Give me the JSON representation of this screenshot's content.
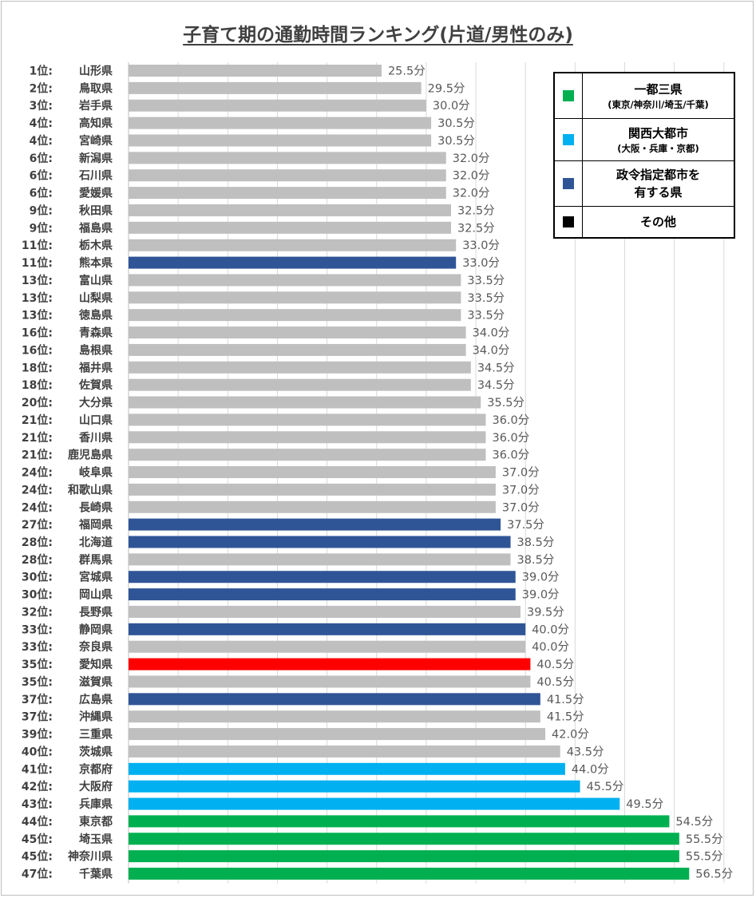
{
  "chart_data": {
    "type": "bar",
    "orientation": "horizontal",
    "title": "子育て期の通勤時間ランキング(片道/男性のみ)",
    "unit_suffix": "分",
    "xlim": [
      0,
      60
    ],
    "grid": true,
    "colors": {
      "一都三県": "#00b050",
      "関西大都市": "#00b0f0",
      "政令指定都市": "#2f5597",
      "その他": "#bfbfbf",
      "highlight": "#ff0000"
    },
    "legend": {
      "placement": "top-right",
      "items": [
        {
          "label": "一都三県",
          "sub": "(東京/神奈川/埼玉/千葉)",
          "color": "#00b050"
        },
        {
          "label": "関西大都市",
          "sub": "(大阪・兵庫・京都)",
          "color": "#00b0f0"
        },
        {
          "label": "政令指定都市を\n有する県",
          "sub": "",
          "color": "#2f5597"
        },
        {
          "label": "その他",
          "sub": "",
          "color": "#000000"
        }
      ]
    },
    "rows": [
      {
        "rank": "1位:",
        "pref": "山形県",
        "value": 25.5,
        "group": "その他"
      },
      {
        "rank": "2位:",
        "pref": "鳥取県",
        "value": 29.5,
        "group": "その他"
      },
      {
        "rank": "3位:",
        "pref": "岩手県",
        "value": 30.0,
        "group": "その他"
      },
      {
        "rank": "4位:",
        "pref": "高知県",
        "value": 30.5,
        "group": "その他"
      },
      {
        "rank": "4位:",
        "pref": "宮崎県",
        "value": 30.5,
        "group": "その他"
      },
      {
        "rank": "6位:",
        "pref": "新潟県",
        "value": 32.0,
        "group": "その他"
      },
      {
        "rank": "6位:",
        "pref": "石川県",
        "value": 32.0,
        "group": "その他"
      },
      {
        "rank": "6位:",
        "pref": "愛媛県",
        "value": 32.0,
        "group": "その他"
      },
      {
        "rank": "9位:",
        "pref": "秋田県",
        "value": 32.5,
        "group": "その他"
      },
      {
        "rank": "9位:",
        "pref": "福島県",
        "value": 32.5,
        "group": "その他"
      },
      {
        "rank": "11位:",
        "pref": "栃木県",
        "value": 33.0,
        "group": "その他"
      },
      {
        "rank": "11位:",
        "pref": "熊本県",
        "value": 33.0,
        "group": "政令指定都市"
      },
      {
        "rank": "13位:",
        "pref": "富山県",
        "value": 33.5,
        "group": "その他"
      },
      {
        "rank": "13位:",
        "pref": "山梨県",
        "value": 33.5,
        "group": "その他"
      },
      {
        "rank": "13位:",
        "pref": "徳島県",
        "value": 33.5,
        "group": "その他"
      },
      {
        "rank": "16位:",
        "pref": "青森県",
        "value": 34.0,
        "group": "その他"
      },
      {
        "rank": "16位:",
        "pref": "島根県",
        "value": 34.0,
        "group": "その他"
      },
      {
        "rank": "18位:",
        "pref": "福井県",
        "value": 34.5,
        "group": "その他"
      },
      {
        "rank": "18位:",
        "pref": "佐賀県",
        "value": 34.5,
        "group": "その他"
      },
      {
        "rank": "20位:",
        "pref": "大分県",
        "value": 35.5,
        "group": "その他"
      },
      {
        "rank": "21位:",
        "pref": "山口県",
        "value": 36.0,
        "group": "その他"
      },
      {
        "rank": "21位:",
        "pref": "香川県",
        "value": 36.0,
        "group": "その他"
      },
      {
        "rank": "21位:",
        "pref": "鹿児島県",
        "value": 36.0,
        "group": "その他"
      },
      {
        "rank": "24位:",
        "pref": "岐阜県",
        "value": 37.0,
        "group": "その他"
      },
      {
        "rank": "24位:",
        "pref": "和歌山県",
        "value": 37.0,
        "group": "その他"
      },
      {
        "rank": "24位:",
        "pref": "長崎県",
        "value": 37.0,
        "group": "その他"
      },
      {
        "rank": "27位:",
        "pref": "福岡県",
        "value": 37.5,
        "group": "政令指定都市"
      },
      {
        "rank": "28位:",
        "pref": "北海道",
        "value": 38.5,
        "group": "政令指定都市"
      },
      {
        "rank": "28位:",
        "pref": "群馬県",
        "value": 38.5,
        "group": "その他"
      },
      {
        "rank": "30位:",
        "pref": "宮城県",
        "value": 39.0,
        "group": "政令指定都市"
      },
      {
        "rank": "30位:",
        "pref": "岡山県",
        "value": 39.0,
        "group": "政令指定都市"
      },
      {
        "rank": "32位:",
        "pref": "長野県",
        "value": 39.5,
        "group": "その他"
      },
      {
        "rank": "33位:",
        "pref": "静岡県",
        "value": 40.0,
        "group": "政令指定都市"
      },
      {
        "rank": "33位:",
        "pref": "奈良県",
        "value": 40.0,
        "group": "その他"
      },
      {
        "rank": "35位:",
        "pref": "愛知県",
        "value": 40.5,
        "group": "highlight"
      },
      {
        "rank": "35位:",
        "pref": "滋賀県",
        "value": 40.5,
        "group": "その他"
      },
      {
        "rank": "37位:",
        "pref": "広島県",
        "value": 41.5,
        "group": "政令指定都市"
      },
      {
        "rank": "37位:",
        "pref": "沖縄県",
        "value": 41.5,
        "group": "その他"
      },
      {
        "rank": "39位:",
        "pref": "三重県",
        "value": 42.0,
        "group": "その他"
      },
      {
        "rank": "40位:",
        "pref": "茨城県",
        "value": 43.5,
        "group": "その他"
      },
      {
        "rank": "41位:",
        "pref": "京都府",
        "value": 44.0,
        "group": "関西大都市"
      },
      {
        "rank": "42位:",
        "pref": "大阪府",
        "value": 45.5,
        "group": "関西大都市"
      },
      {
        "rank": "43位:",
        "pref": "兵庫県",
        "value": 49.5,
        "group": "関西大都市"
      },
      {
        "rank": "44位:",
        "pref": "東京都",
        "value": 54.5,
        "group": "一都三県"
      },
      {
        "rank": "45位:",
        "pref": "埼玉県",
        "value": 55.5,
        "group": "一都三県"
      },
      {
        "rank": "45位:",
        "pref": "神奈川県",
        "value": 55.5,
        "group": "一都三県"
      },
      {
        "rank": "47位:",
        "pref": "千葉県",
        "value": 56.5,
        "group": "一都三県"
      }
    ]
  }
}
